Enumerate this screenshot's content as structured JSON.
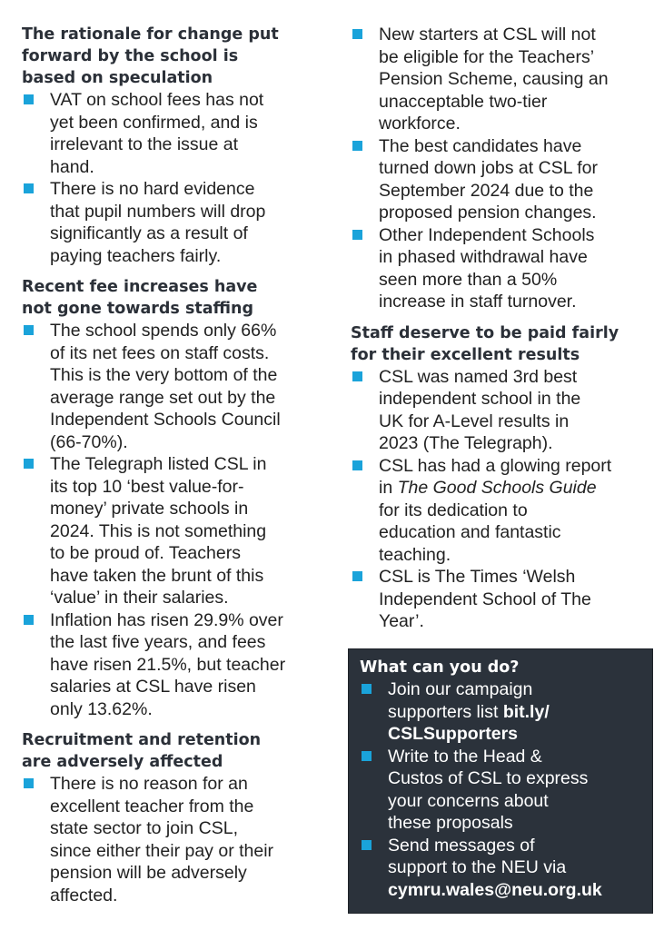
{
  "left": {
    "sections": [
      {
        "heading": [
          "The rationale for change put",
          "forward by the school is",
          "based on speculation"
        ],
        "items": [
          [
            "VAT on school fees has not",
            "yet been confirmed, and is",
            "irrelevant to the issue at",
            "hand."
          ],
          [
            "There is no hard evidence",
            "that pupil numbers will drop",
            "significantly as a result of",
            "paying teachers fairly."
          ]
        ]
      },
      {
        "heading": [
          "Recent fee increases have",
          "not gone towards staffing"
        ],
        "items": [
          [
            "The school spends only 66%",
            "of its net fees on staff costs.",
            "This is the very bottom of the",
            "average range set out by the",
            "Independent Schools Council",
            "(66-70%)."
          ],
          [
            "The Telegraph listed CSL in",
            "its top 10 ‘best value-for-",
            "money’ private schools in",
            "2024. This is not something",
            "to be proud of. Teachers",
            "have taken the brunt of this",
            "‘value’ in their salaries."
          ],
          [
            "Inflation has risen 29.9% over",
            "the last five years, and fees",
            "have risen 21.5%, but teacher",
            "salaries at CSL have risen",
            "only 13.62%."
          ]
        ]
      },
      {
        "heading": [
          "Recruitment and retention",
          "are adversely affected"
        ],
        "items": [
          [
            "There is no reason for an",
            "excellent teacher from the",
            "state sector to join CSL,",
            "since either their pay or their",
            "pension will be adversely",
            "affected."
          ]
        ]
      }
    ]
  },
  "right": {
    "recruitment_items": [
      [
        "New starters at CSL will not",
        "be eligible for the Teachers’",
        "Pension Scheme, causing an",
        "unacceptable two-tier",
        "workforce."
      ],
      [
        "The best candidates have",
        "turned down jobs at CSL for",
        "September 2024 due to the",
        "proposed pension changes."
      ],
      [
        "Other Independent Schools",
        "in phased withdrawal have",
        "seen more than a 50%",
        "increase in staff turnover."
      ]
    ],
    "results_section": {
      "heading": [
        "Staff deserve to be paid fairly",
        "for their excellent results"
      ],
      "item1": [
        "CSL was named 3rd best",
        "independent school in the",
        "UK for A-Level results in",
        "2023 (The Telegraph)."
      ],
      "item2": {
        "line1": "CSL has had a glowing report",
        "line2_prefix": "in ",
        "line2_title": "The Good Schools Guide",
        "rest": [
          "for its dedication to",
          "education and fantastic",
          "teaching."
        ]
      },
      "item3": [
        "CSL is The Times ‘Welsh",
        "Independent School of The",
        "Year’."
      ]
    }
  },
  "action_box": {
    "heading": "What can you do?",
    "item1": {
      "line1": "Join our campaign",
      "line2_prefix": "supporters list ",
      "line2_link": "bit.ly/",
      "line3_link": "CSLSupporters"
    },
    "item2": [
      "Write to the Head &",
      "Custos of CSL to express",
      "your concerns about",
      "these proposals"
    ],
    "item3": {
      "lines": [
        "Send messages of",
        "support to the NEU via"
      ],
      "email": "cymru.wales@neu.org.uk"
    }
  },
  "colors": {
    "bullet": "#1aa3da",
    "heading": "#2b3038",
    "box_background": "#2b323b",
    "box_text": "#ffffff"
  }
}
